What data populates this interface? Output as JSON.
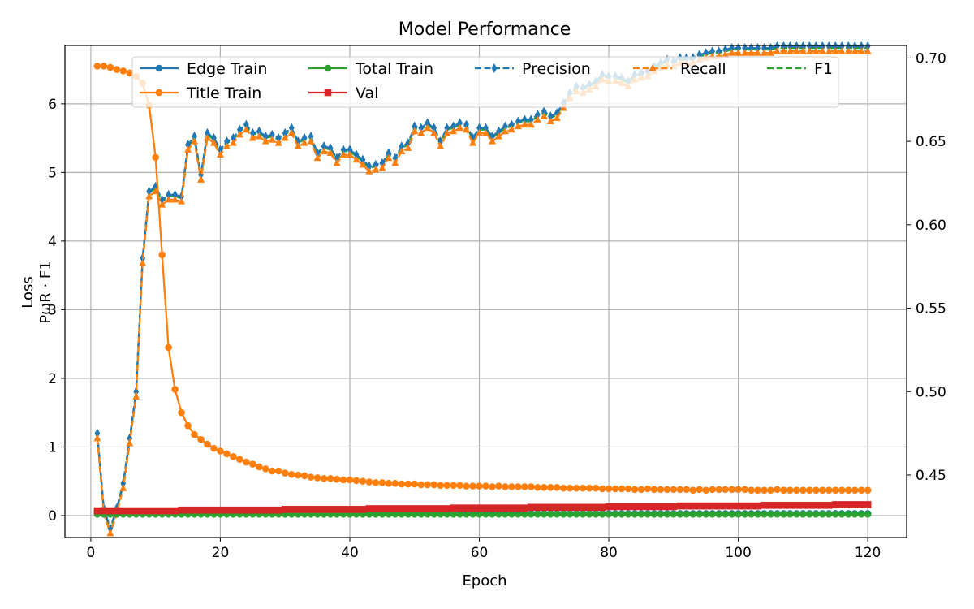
{
  "chart_data": {
    "type": "line",
    "title": "Model Performance",
    "xlabel": "Epoch",
    "ylabel_left": "Loss",
    "ylabel_right": "P, R, F1",
    "ylabel_overlap_text": "PωR · F1",
    "xlim": [
      -4,
      126
    ],
    "ylim_left": [
      -0.32,
      6.85
    ],
    "ylim_right": [
      0.4125,
      0.7075
    ],
    "x_ticks": [
      0,
      20,
      40,
      60,
      80,
      100,
      120
    ],
    "y_ticks_left": [
      0,
      1,
      2,
      3,
      4,
      5,
      6
    ],
    "y_ticks_right": [
      0.45,
      0.5,
      0.55,
      0.6,
      0.65,
      0.7
    ],
    "y_tick_labels_right": [
      "0.45",
      "0.50",
      "0.55",
      "0.60",
      "0.65",
      "0.70"
    ],
    "grid": true,
    "legend_position": "top",
    "legend_entries": [
      "Edge Train",
      "Title Train",
      "Total Train",
      "Val",
      "Precision",
      "Recall",
      "F1"
    ],
    "epochs": [
      1,
      120
    ],
    "series": [
      {
        "name": "Edge Train",
        "axis": "left",
        "color": "#1f77b4",
        "linestyle": "solid",
        "marker": "circle",
        "values": [
          0.06,
          0.06,
          0.05,
          0.05,
          0.05,
          0.05,
          0.05,
          0.05,
          0.05,
          0.04,
          0.04,
          0.04,
          0.04,
          0.04,
          0.04,
          0.04,
          0.04,
          0.04,
          0.04,
          0.03,
          0.03,
          0.03,
          0.03,
          0.03,
          0.03,
          0.03,
          0.03,
          0.03,
          0.03,
          0.03,
          0.03,
          0.03,
          0.03,
          0.03,
          0.03,
          0.03,
          0.03,
          0.03,
          0.03,
          0.03,
          0.03,
          0.03,
          0.03,
          0.03,
          0.03,
          0.03,
          0.03,
          0.03,
          0.03,
          0.03,
          0.03,
          0.03,
          0.03,
          0.03,
          0.03,
          0.03,
          0.03,
          0.03,
          0.03,
          0.03,
          0.03,
          0.03,
          0.03,
          0.03,
          0.03,
          0.03,
          0.03,
          0.03,
          0.03,
          0.03,
          0.03,
          0.03,
          0.03,
          0.03,
          0.03,
          0.03,
          0.03,
          0.03,
          0.03,
          0.03,
          0.03,
          0.03,
          0.03,
          0.03,
          0.03,
          0.03,
          0.03,
          0.03,
          0.03,
          0.03,
          0.03,
          0.03,
          0.03,
          0.03,
          0.03,
          0.03,
          0.03,
          0.03,
          0.03,
          0.03,
          0.03,
          0.03,
          0.03,
          0.03,
          0.03,
          0.03,
          0.03,
          0.03,
          0.03,
          0.03,
          0.03,
          0.03,
          0.03,
          0.03,
          0.03,
          0.03,
          0.03,
          0.03,
          0.03,
          0.03
        ]
      },
      {
        "name": "Title Train",
        "axis": "left",
        "color": "#ff7f0e",
        "linestyle": "solid",
        "marker": "circle",
        "values": [
          6.55,
          6.55,
          6.53,
          6.5,
          6.48,
          6.45,
          6.4,
          6.3,
          5.98,
          5.22,
          3.8,
          2.45,
          1.84,
          1.5,
          1.31,
          1.18,
          1.11,
          1.04,
          0.98,
          0.94,
          0.9,
          0.86,
          0.82,
          0.78,
          0.75,
          0.71,
          0.68,
          0.65,
          0.65,
          0.62,
          0.6,
          0.59,
          0.58,
          0.56,
          0.55,
          0.54,
          0.54,
          0.53,
          0.52,
          0.52,
          0.51,
          0.5,
          0.49,
          0.48,
          0.48,
          0.47,
          0.47,
          0.46,
          0.46,
          0.46,
          0.45,
          0.45,
          0.45,
          0.44,
          0.44,
          0.44,
          0.44,
          0.43,
          0.43,
          0.43,
          0.43,
          0.42,
          0.43,
          0.42,
          0.42,
          0.42,
          0.42,
          0.42,
          0.41,
          0.41,
          0.41,
          0.41,
          0.4,
          0.4,
          0.4,
          0.4,
          0.4,
          0.4,
          0.39,
          0.39,
          0.39,
          0.39,
          0.39,
          0.38,
          0.38,
          0.39,
          0.38,
          0.38,
          0.38,
          0.38,
          0.38,
          0.38,
          0.37,
          0.38,
          0.37,
          0.38,
          0.38,
          0.38,
          0.38,
          0.38,
          0.38,
          0.37,
          0.37,
          0.37,
          0.37,
          0.38,
          0.37,
          0.37,
          0.37,
          0.37,
          0.37,
          0.37,
          0.37,
          0.37,
          0.37,
          0.37,
          0.37,
          0.37,
          0.37,
          0.37
        ]
      },
      {
        "name": "Total Train",
        "axis": "left",
        "color": "#2ca02c",
        "linestyle": "solid",
        "marker": "circle",
        "values": [
          0.02,
          0.02,
          0.02,
          0.02,
          0.02,
          0.02,
          0.02,
          0.02,
          0.02,
          0.02,
          0.02,
          0.02,
          0.02,
          0.02,
          0.02,
          0.02,
          0.02,
          0.02,
          0.02,
          0.02,
          0.02,
          0.02,
          0.02,
          0.02,
          0.02,
          0.02,
          0.02,
          0.02,
          0.02,
          0.02,
          0.02,
          0.02,
          0.02,
          0.02,
          0.02,
          0.02,
          0.02,
          0.02,
          0.02,
          0.02,
          0.02,
          0.02,
          0.02,
          0.02,
          0.02,
          0.02,
          0.02,
          0.02,
          0.02,
          0.02,
          0.02,
          0.02,
          0.02,
          0.02,
          0.02,
          0.02,
          0.02,
          0.02,
          0.02,
          0.02,
          0.02,
          0.02,
          0.02,
          0.02,
          0.02,
          0.02,
          0.02,
          0.02,
          0.02,
          0.02,
          0.02,
          0.02,
          0.02,
          0.02,
          0.02,
          0.02,
          0.02,
          0.02,
          0.02,
          0.02,
          0.02,
          0.02,
          0.02,
          0.02,
          0.02,
          0.02,
          0.02,
          0.02,
          0.02,
          0.02,
          0.02,
          0.02,
          0.02,
          0.02,
          0.02,
          0.02,
          0.02,
          0.02,
          0.02,
          0.02,
          0.02,
          0.02,
          0.02,
          0.02,
          0.02,
          0.02,
          0.02,
          0.02,
          0.02,
          0.02,
          0.02,
          0.02,
          0.02,
          0.02,
          0.02,
          0.02,
          0.02,
          0.02,
          0.02,
          0.02
        ]
      },
      {
        "name": "Val",
        "axis": "left",
        "color": "#d62728",
        "linestyle": "solid",
        "marker": "square",
        "values": [
          0.07,
          0.07,
          0.07,
          0.07,
          0.07,
          0.07,
          0.07,
          0.07,
          0.07,
          0.07,
          0.07,
          0.07,
          0.07,
          0.08,
          0.08,
          0.08,
          0.08,
          0.08,
          0.08,
          0.08,
          0.08,
          0.08,
          0.08,
          0.08,
          0.08,
          0.08,
          0.08,
          0.08,
          0.08,
          0.09,
          0.09,
          0.09,
          0.09,
          0.09,
          0.09,
          0.09,
          0.09,
          0.09,
          0.09,
          0.09,
          0.09,
          0.09,
          0.1,
          0.1,
          0.1,
          0.1,
          0.1,
          0.1,
          0.1,
          0.1,
          0.1,
          0.1,
          0.1,
          0.1,
          0.1,
          0.11,
          0.11,
          0.11,
          0.11,
          0.11,
          0.11,
          0.11,
          0.11,
          0.11,
          0.11,
          0.11,
          0.11,
          0.12,
          0.12,
          0.12,
          0.12,
          0.12,
          0.12,
          0.12,
          0.12,
          0.12,
          0.12,
          0.12,
          0.12,
          0.13,
          0.13,
          0.13,
          0.13,
          0.13,
          0.13,
          0.13,
          0.13,
          0.13,
          0.13,
          0.13,
          0.14,
          0.14,
          0.14,
          0.14,
          0.14,
          0.14,
          0.14,
          0.14,
          0.14,
          0.14,
          0.14,
          0.14,
          0.14,
          0.15,
          0.15,
          0.15,
          0.15,
          0.15,
          0.15,
          0.15,
          0.15,
          0.15,
          0.15,
          0.15,
          0.16,
          0.16,
          0.16,
          0.16,
          0.16,
          0.16
        ]
      },
      {
        "name": "Precision",
        "axis": "right",
        "color": "#1f77b4",
        "linestyle": "dashed",
        "marker": "thin_diamond",
        "values": [
          0.475,
          0.43,
          0.418,
          0.43,
          0.445,
          0.472,
          0.5,
          0.58,
          0.62,
          0.623,
          0.615,
          0.618,
          0.618,
          0.617,
          0.648,
          0.653,
          0.63,
          0.655,
          0.652,
          0.645,
          0.65,
          0.652,
          0.657,
          0.66,
          0.655,
          0.656,
          0.653,
          0.654,
          0.652,
          0.655,
          0.658,
          0.65,
          0.652,
          0.653,
          0.643,
          0.647,
          0.646,
          0.64,
          0.645,
          0.645,
          0.642,
          0.639,
          0.635,
          0.636,
          0.637,
          0.643,
          0.64,
          0.647,
          0.649,
          0.659,
          0.658,
          0.661,
          0.658,
          0.65,
          0.658,
          0.659,
          0.661,
          0.66,
          0.652,
          0.658,
          0.658,
          0.653,
          0.656,
          0.659,
          0.66,
          0.662,
          0.663,
          0.663,
          0.666,
          0.668,
          0.665,
          0.667,
          0.673,
          0.679,
          0.683,
          0.682,
          0.684,
          0.686,
          0.69,
          0.689,
          0.689,
          0.688,
          0.686,
          0.69,
          0.691,
          0.692,
          0.695,
          0.697,
          0.699,
          0.698,
          0.7,
          0.7,
          0.7,
          0.702,
          0.703,
          0.704,
          0.704,
          0.705,
          0.706,
          0.706,
          0.706,
          0.706,
          0.706,
          0.706,
          0.706,
          0.707,
          0.707,
          0.707,
          0.707,
          0.707,
          0.707,
          0.707,
          0.707,
          0.707,
          0.707,
          0.707,
          0.707,
          0.707,
          0.707,
          0.707
        ]
      },
      {
        "name": "Recall",
        "axis": "right",
        "color": "#ff7f0e",
        "linestyle": "dashed",
        "marker": "triangle",
        "values": [
          0.472,
          0.427,
          0.415,
          0.427,
          0.442,
          0.469,
          0.497,
          0.577,
          0.617,
          0.62,
          0.612,
          0.615,
          0.615,
          0.614,
          0.645,
          0.65,
          0.627,
          0.652,
          0.649,
          0.642,
          0.647,
          0.649,
          0.654,
          0.657,
          0.652,
          0.653,
          0.65,
          0.651,
          0.649,
          0.652,
          0.655,
          0.647,
          0.649,
          0.65,
          0.64,
          0.644,
          0.643,
          0.637,
          0.642,
          0.642,
          0.639,
          0.636,
          0.632,
          0.633,
          0.634,
          0.64,
          0.637,
          0.644,
          0.646,
          0.656,
          0.655,
          0.658,
          0.655,
          0.647,
          0.655,
          0.656,
          0.658,
          0.657,
          0.649,
          0.655,
          0.655,
          0.65,
          0.653,
          0.656,
          0.657,
          0.659,
          0.66,
          0.66,
          0.663,
          0.665,
          0.662,
          0.664,
          0.67,
          0.676,
          0.68,
          0.679,
          0.681,
          0.683,
          0.687,
          0.686,
          0.686,
          0.685,
          0.683,
          0.687,
          0.688,
          0.689,
          0.692,
          0.694,
          0.696,
          0.695,
          0.697,
          0.697,
          0.697,
          0.699,
          0.7,
          0.701,
          0.701,
          0.702,
          0.703,
          0.703,
          0.703,
          0.703,
          0.703,
          0.703,
          0.703,
          0.704,
          0.704,
          0.704,
          0.704,
          0.704,
          0.704,
          0.704,
          0.704,
          0.704,
          0.704,
          0.704,
          0.704,
          0.704,
          0.704,
          0.704
        ]
      },
      {
        "name": "F1",
        "axis": "right",
        "color": "#2ca02c",
        "linestyle": "dashed",
        "marker": "none",
        "values": [
          0.474,
          0.429,
          0.417,
          0.429,
          0.444,
          0.471,
          0.499,
          0.579,
          0.619,
          0.622,
          0.614,
          0.617,
          0.617,
          0.616,
          0.647,
          0.652,
          0.629,
          0.654,
          0.651,
          0.644,
          0.649,
          0.651,
          0.656,
          0.659,
          0.654,
          0.655,
          0.652,
          0.653,
          0.651,
          0.654,
          0.657,
          0.649,
          0.651,
          0.652,
          0.642,
          0.646,
          0.645,
          0.639,
          0.644,
          0.644,
          0.641,
          0.638,
          0.634,
          0.635,
          0.636,
          0.642,
          0.639,
          0.646,
          0.648,
          0.658,
          0.657,
          0.66,
          0.657,
          0.649,
          0.657,
          0.658,
          0.66,
          0.659,
          0.651,
          0.657,
          0.657,
          0.652,
          0.655,
          0.658,
          0.659,
          0.661,
          0.662,
          0.662,
          0.665,
          0.667,
          0.664,
          0.666,
          0.672,
          0.678,
          0.682,
          0.681,
          0.683,
          0.685,
          0.689,
          0.688,
          0.688,
          0.687,
          0.685,
          0.689,
          0.69,
          0.691,
          0.694,
          0.696,
          0.698,
          0.697,
          0.699,
          0.699,
          0.699,
          0.701,
          0.702,
          0.703,
          0.703,
          0.704,
          0.705,
          0.705,
          0.705,
          0.705,
          0.705,
          0.705,
          0.705,
          0.706,
          0.706,
          0.706,
          0.706,
          0.706,
          0.706,
          0.706,
          0.706,
          0.706,
          0.706,
          0.706,
          0.706,
          0.706,
          0.706,
          0.706
        ]
      }
    ]
  }
}
